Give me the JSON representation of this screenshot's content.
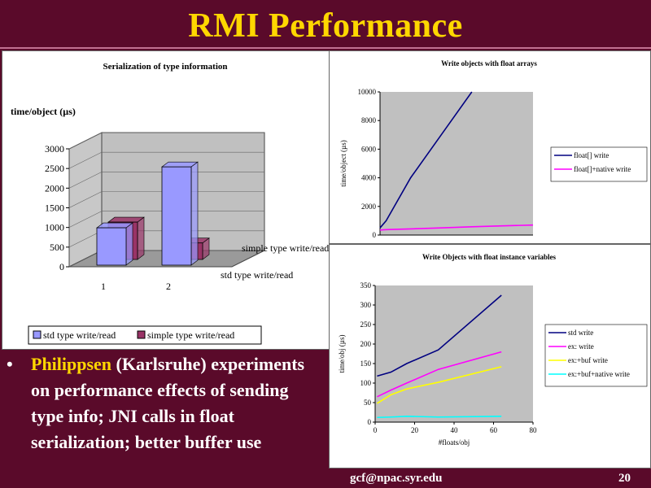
{
  "slide": {
    "title": "RMI Performance",
    "bullet": {
      "name": "Philippsen",
      "text_after_name": " (Karlsruhe) experiments on performance effects of sending type info; JNI calls in float serialization; better buffer use"
    },
    "footer_email": "gcf@npac.syr.edu",
    "page_number": "20"
  },
  "chart_data": [
    {
      "type": "bar",
      "title": "Serialization of type information",
      "ylabel": "time/object (µs)",
      "categories": [
        "1",
        "2"
      ],
      "depth_labels": [
        "simple type write/read",
        "std type write/read"
      ],
      "series": [
        {
          "name": "std type write/read",
          "values": [
            950,
            2500
          ],
          "color": "#9999ff"
        },
        {
          "name": "simple type write/read",
          "values": [
            950,
            420
          ],
          "color": "#993366"
        }
      ],
      "ylim": [
        0,
        3000
      ],
      "yticks": [
        "0",
        "500",
        "1000",
        "1500",
        "2000",
        "2500",
        "3000"
      ],
      "legend_position": "bottom"
    },
    {
      "type": "line",
      "title": "Write objects with float arrays",
      "ylabel": "time/object (µs)",
      "ylim": [
        0,
        10000
      ],
      "yticks": [
        "0",
        "2000",
        "4000",
        "6000",
        "8000",
        "10000"
      ],
      "x": [
        0,
        20,
        100,
        200,
        300,
        400,
        500
      ],
      "series": [
        {
          "name": "float[] write",
          "values": [
            500,
            1000,
            4000,
            7000,
            10000,
            null,
            null
          ],
          "color": "#000080"
        },
        {
          "name": "float[]+native write",
          "values": [
            350,
            380,
            430,
            500,
            580,
            640,
            700
          ],
          "color": "#ff00ff"
        }
      ],
      "legend_position": "right"
    },
    {
      "type": "line",
      "title": "Write Objects with float instance variables",
      "xlabel": "#floats/obj",
      "ylabel": "time/obj (µs)",
      "xlim": [
        0,
        80
      ],
      "xticks": [
        "0",
        "20",
        "40",
        "60",
        "80"
      ],
      "ylim": [
        0,
        350
      ],
      "yticks": [
        "0",
        "50",
        "100",
        "150",
        "200",
        "250",
        "300",
        "350"
      ],
      "x": [
        1,
        8,
        16,
        32,
        64
      ],
      "series": [
        {
          "name": "std write",
          "values": [
            118,
            128,
            150,
            185,
            325
          ],
          "color": "#000080"
        },
        {
          "name": "ex: write",
          "values": [
            65,
            82,
            100,
            135,
            180
          ],
          "color": "#ff00ff"
        },
        {
          "name": "ex:+buf write",
          "values": [
            48,
            70,
            85,
            102,
            142
          ],
          "color": "#ffff00"
        },
        {
          "name": "ex:+buf+native write",
          "values": [
            12,
            13,
            15,
            13,
            15
          ],
          "color": "#00ffff"
        }
      ],
      "legend_position": "right"
    }
  ]
}
